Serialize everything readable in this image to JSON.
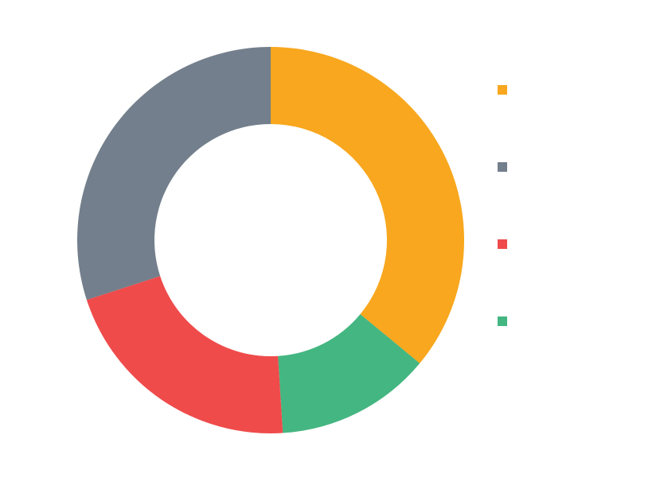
{
  "chart_data": {
    "type": "pie",
    "variant": "donut",
    "title": "",
    "legend_position": "right",
    "categories": [
      "",
      "",
      "",
      ""
    ],
    "values": [
      36,
      13,
      21,
      30
    ],
    "colors": [
      "#F8A71E",
      "#44B681",
      "#EF4B4B",
      "#737F8C"
    ],
    "legend_order": [
      0,
      3,
      2,
      1
    ],
    "start_angle_deg": 0,
    "direction": "clockwise"
  }
}
